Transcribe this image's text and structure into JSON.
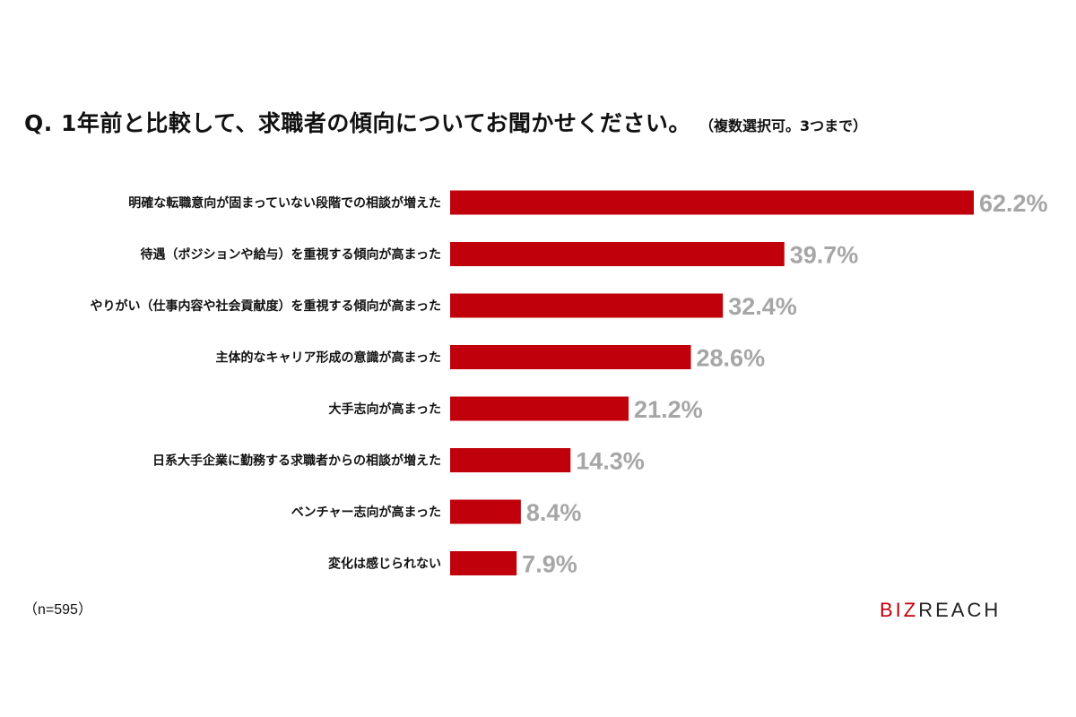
{
  "header": {
    "title": "Q. 1年前と比較して、求職者の傾向についてお聞かせください。",
    "note": "（複数選択可。3つまで）"
  },
  "chart_data": {
    "type": "bar",
    "orientation": "horizontal",
    "unit": "%",
    "categories": [
      "明確な転職意向が固まっていない段階での相談が増えた",
      "待遇（ポジションや給与）を重視する傾向が高まった",
      "やりがい（仕事内容や社会貢献度）を重視する傾向が高まった",
      "主体的なキャリア形成の意識が高まった",
      "大手志向が高まった",
      "日系大手企業に勤務する求職者からの相談が増えた",
      "ベンチャー志向が高まった",
      "変化は感じられない"
    ],
    "values": [
      62.2,
      39.7,
      32.4,
      28.6,
      21.2,
      14.3,
      8.4,
      7.9
    ],
    "value_labels": [
      "62.2%",
      "39.7%",
      "32.4%",
      "28.6%",
      "21.2%",
      "14.3%",
      "8.4%",
      "7.9%"
    ],
    "xlim": [
      0,
      62.2
    ],
    "grid": false,
    "legend": "none"
  },
  "footer": {
    "sample_size": "（n=595）",
    "brand_part1": "BIZ",
    "brand_part2": "REACH"
  },
  "colors": {
    "bar": "#c0000b",
    "value_label": "#a6a6a6",
    "text": "#111111"
  }
}
